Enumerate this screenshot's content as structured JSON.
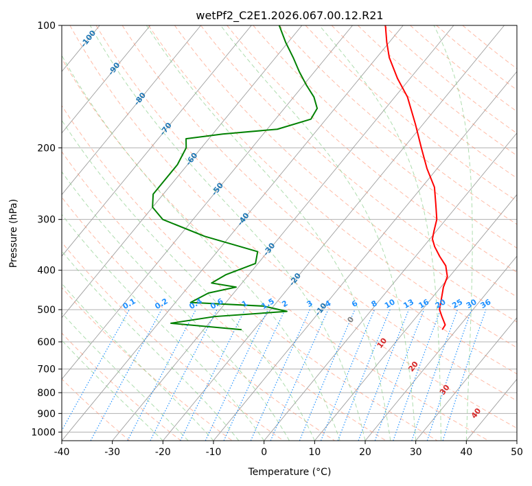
{
  "chart_data": {
    "type": "line",
    "title": "wetPf2_C2E1.2026.067.00.12.R21",
    "xlabel": "Temperature (°C)",
    "ylabel": "Pressure (hPa)",
    "x_range": [
      -40,
      50
    ],
    "y_range": [
      1050,
      100
    ],
    "y_scale": "log",
    "x_ticks": [
      -40,
      -30,
      -20,
      -10,
      0,
      10,
      20,
      30,
      40,
      50
    ],
    "y_ticks": [
      100,
      200,
      300,
      400,
      500,
      600,
      700,
      800,
      900,
      1000
    ],
    "grid": true,
    "series": [
      {
        "role": "temperature",
        "color": "#ff0000",
        "points": [
          {
            "p": 560,
            "t": 17.2
          },
          {
            "p": 545,
            "t": 17.0
          },
          {
            "p": 520,
            "t": 15.0
          },
          {
            "p": 500,
            "t": 13.4
          },
          {
            "p": 470,
            "t": 12.0
          },
          {
            "p": 440,
            "t": 10.5
          },
          {
            "p": 415,
            "t": 9.6
          },
          {
            "p": 390,
            "t": 7.5
          },
          {
            "p": 370,
            "t": 4.8
          },
          {
            "p": 350,
            "t": 2.2
          },
          {
            "p": 335,
            "t": 0.5
          },
          {
            "p": 320,
            "t": -0.5
          },
          {
            "p": 300,
            "t": -1.8
          },
          {
            "p": 275,
            "t": -4.5
          },
          {
            "p": 250,
            "t": -7.5
          },
          {
            "p": 225,
            "t": -12.0
          },
          {
            "p": 200,
            "t": -16.5
          },
          {
            "p": 175,
            "t": -21.5
          },
          {
            "p": 150,
            "t": -27.5
          },
          {
            "p": 135,
            "t": -32.5
          },
          {
            "p": 120,
            "t": -37.5
          },
          {
            "p": 110,
            "t": -40.5
          },
          {
            "p": 100,
            "t": -43.5
          }
        ]
      },
      {
        "role": "dewpoint",
        "color": "#008000",
        "points": [
          {
            "p": 560,
            "t": -22.5
          },
          {
            "p": 540,
            "t": -37.5
          },
          {
            "p": 520,
            "t": -30.0
          },
          {
            "p": 505,
            "t": -16.5
          },
          {
            "p": 490,
            "t": -22.0
          },
          {
            "p": 480,
            "t": -37.0
          },
          {
            "p": 455,
            "t": -35.0
          },
          {
            "p": 440,
            "t": -30.5
          },
          {
            "p": 430,
            "t": -36.0
          },
          {
            "p": 410,
            "t": -34.5
          },
          {
            "p": 385,
            "t": -30.5
          },
          {
            "p": 360,
            "t": -32.0
          },
          {
            "p": 330,
            "t": -45.0
          },
          {
            "p": 300,
            "t": -56.0
          },
          {
            "p": 280,
            "t": -60.0
          },
          {
            "p": 260,
            "t": -62.0
          },
          {
            "p": 240,
            "t": -62.0
          },
          {
            "p": 220,
            "t": -62.0
          },
          {
            "p": 200,
            "t": -63.0
          },
          {
            "p": 190,
            "t": -64.5
          },
          {
            "p": 185,
            "t": -58.0
          },
          {
            "p": 180,
            "t": -48.0
          },
          {
            "p": 170,
            "t": -43.0
          },
          {
            "p": 160,
            "t": -43.5
          },
          {
            "p": 150,
            "t": -46.0
          },
          {
            "p": 140,
            "t": -49.5
          },
          {
            "p": 130,
            "t": -53.0
          },
          {
            "p": 120,
            "t": -56.5
          },
          {
            "p": 110,
            "t": -60.5
          },
          {
            "p": 100,
            "t": -64.5
          }
        ]
      }
    ],
    "isotherm_labels": {
      "color": "#1f77b4",
      "values": [
        -100,
        -90,
        -80,
        -70,
        -60,
        -50,
        -40,
        -30,
        -20,
        -10
      ]
    },
    "mixing_ratio_labels": {
      "color": "#1e90ff",
      "pressure_hPa": 500,
      "values": [
        "0.1",
        "0.2",
        "0.4",
        "0.6",
        "1",
        "1.5",
        "2",
        "3",
        "4",
        "6",
        "8",
        "10",
        "13",
        "16",
        "20",
        "25",
        "30",
        "36"
      ]
    },
    "dry_adiabat_labels": {
      "color": "#d62728",
      "values": [
        "0",
        "10",
        "20",
        "30",
        "40"
      ]
    },
    "colors": {
      "isotherm": "#9e9e9e",
      "isobar": "#b0b0b0",
      "dry_adiabat": "#ff8c69",
      "moist_adiabat": "#8ccf8c",
      "mixing_ratio": "#1e90ff",
      "frame": "#000000",
      "zero_adiabat_label": "#808080"
    }
  }
}
